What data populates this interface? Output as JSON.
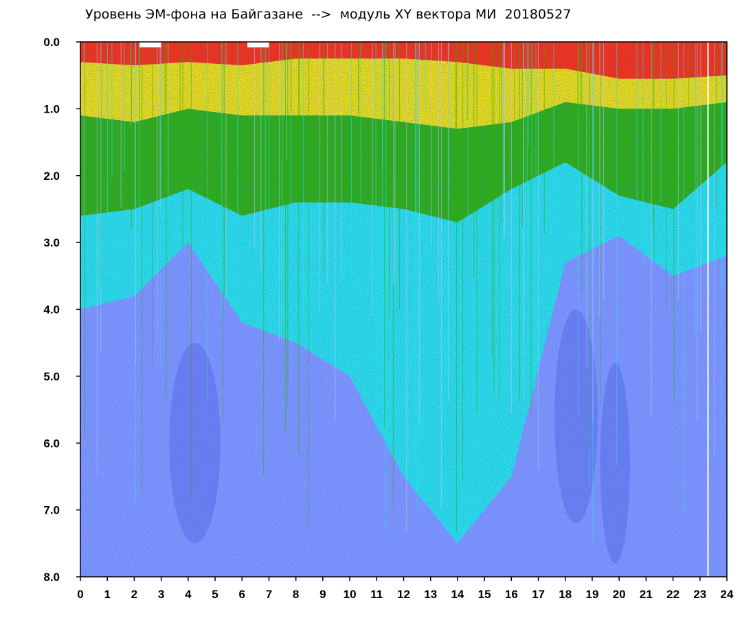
{
  "chart_data": {
    "type": "heatmap",
    "title": "Уровень ЭМ-фона на Байгазане  -->  модуль XY вектора МИ  20180527",
    "xlabel": "",
    "ylabel": "",
    "x_ticks": [
      "0",
      "1",
      "2",
      "3",
      "4",
      "5",
      "6",
      "7",
      "8",
      "9",
      "10",
      "11",
      "12",
      "13",
      "14",
      "15",
      "16",
      "17",
      "18",
      "19",
      "20",
      "21",
      "22",
      "23",
      "24"
    ],
    "y_ticks": [
      "0.0",
      "1.0",
      "2.0",
      "3.0",
      "4.0",
      "5.0",
      "6.0",
      "7.0",
      "8.0"
    ],
    "xlim": [
      0,
      24
    ],
    "ylim": [
      0,
      8
    ],
    "y_inverted": true,
    "color_scale": [
      "#ff2a00",
      "#ff9a00",
      "#f2e400",
      "#27b300",
      "#22e6e6",
      "#7f98ff",
      "#2233dd"
    ],
    "grid": false,
    "legend": "none",
    "boundary_profile": {
      "x": [
        0,
        2,
        4,
        6,
        8,
        10,
        12,
        14,
        16,
        18,
        20,
        22,
        24
      ],
      "red_depth": [
        0.3,
        0.35,
        0.3,
        0.35,
        0.25,
        0.25,
        0.25,
        0.3,
        0.4,
        0.4,
        0.55,
        0.55,
        0.5
      ],
      "yellow_depth": [
        1.1,
        1.2,
        1.0,
        1.1,
        1.1,
        1.1,
        1.2,
        1.3,
        1.2,
        0.9,
        1.0,
        1.0,
        0.9
      ],
      "green_depth": [
        2.6,
        2.5,
        2.2,
        2.6,
        2.4,
        2.4,
        2.5,
        2.7,
        2.2,
        1.8,
        2.3,
        2.5,
        1.8
      ],
      "cyan_depth": [
        4.0,
        3.8,
        3.0,
        4.2,
        4.5,
        5.0,
        6.5,
        7.5,
        6.5,
        3.3,
        2.9,
        3.5,
        3.2
      ]
    }
  }
}
